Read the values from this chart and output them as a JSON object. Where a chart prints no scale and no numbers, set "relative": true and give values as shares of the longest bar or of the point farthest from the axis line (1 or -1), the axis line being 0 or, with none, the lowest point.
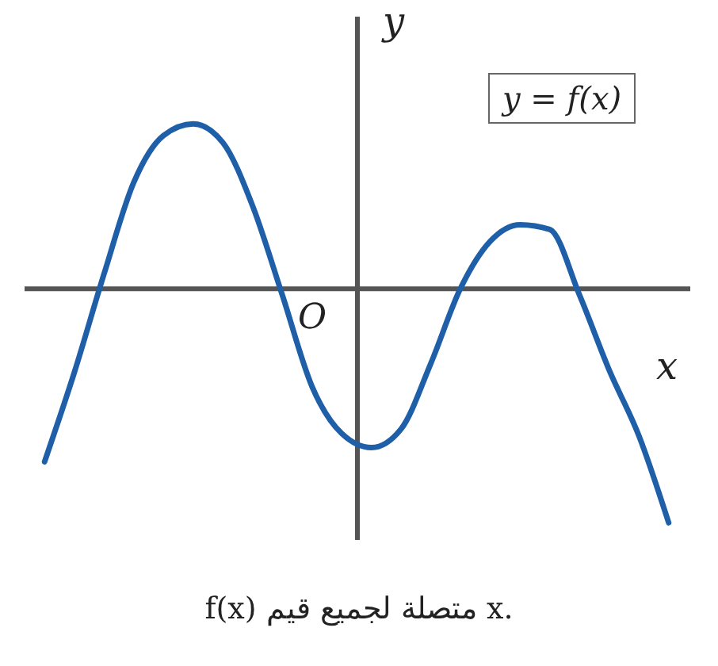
{
  "chart_data": {
    "type": "line",
    "relative": true,
    "xlabel": "x",
    "ylabel": "y",
    "categories": [
      null,
      null,
      null,
      null,
      null,
      null,
      null,
      null,
      null,
      null,
      null,
      null,
      null,
      null,
      null,
      null,
      null,
      null,
      null,
      null,
      null,
      null
    ],
    "series": [
      {
        "color": "#1f5fa8",
        "values": [
          -0.74,
          -0.36,
          0.06,
          0.45,
          0.65,
          0.7,
          0.62,
          0.35,
          -0.03,
          -0.42,
          -0.62,
          -0.68,
          -0.6,
          -0.32,
          0,
          0.2,
          0.27,
          0.25,
          -0.03,
          -0.35,
          -0.63,
          -1
        ]
      }
    ],
    "annotations": [
      "O",
      "y = f(x)",
      "f(x) متصلة لجميع قيم x."
    ]
  }
}
